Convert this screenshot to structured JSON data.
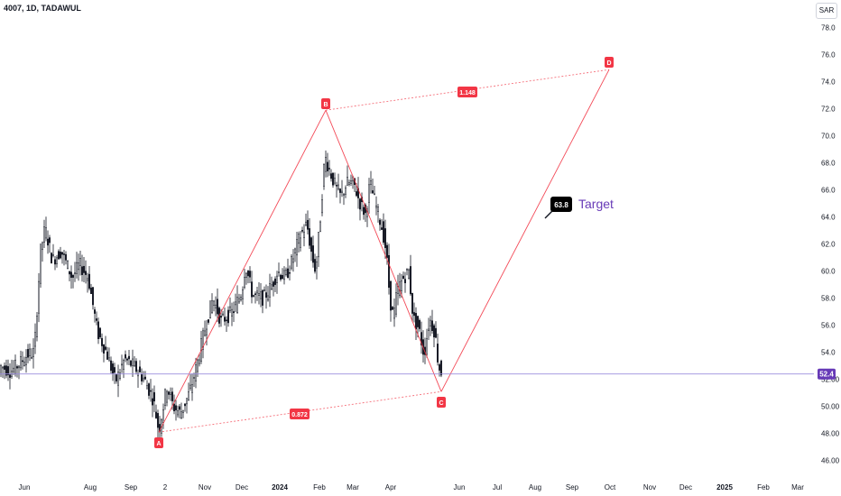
{
  "header": {
    "ticker": "4007, 1D, TADAWUL",
    "currency": "SAR"
  },
  "chart_data": {
    "type": "candlestick",
    "y_ticks": [
      "46.00",
      "48.00",
      "50.00",
      "52.00",
      "54.0",
      "56.0",
      "58.0",
      "60.0",
      "62.0",
      "64.0",
      "66.0",
      "68.0",
      "70.0",
      "72.0",
      "74.0",
      "76.0",
      "78.0"
    ],
    "x_ticks": [
      "Jun",
      "Aug",
      "Sep",
      "2",
      "Nov",
      "Dec",
      "2024",
      "Feb",
      "Mar",
      "Apr",
      "Jun",
      "Jul",
      "Aug",
      "Sep",
      "Oct",
      "Nov",
      "Dec",
      "2025",
      "Feb",
      "Mar"
    ],
    "bold_x_ticks": [
      "2024",
      "2025"
    ],
    "last_price": "52.4",
    "pattern": {
      "points": [
        {
          "label": "A",
          "price": 48.1
        },
        {
          "label": "B",
          "price": 71.9
        },
        {
          "label": "C",
          "price": 51.1
        },
        {
          "label": "D",
          "price": 74.9
        }
      ],
      "ratios": [
        {
          "label": "0.872",
          "between": [
            "A",
            "C"
          ]
        },
        {
          "label": "1.148",
          "between": [
            "B",
            "D"
          ]
        }
      ]
    },
    "callout": {
      "value": "63.8",
      "text": "Target"
    },
    "colors": {
      "pattern": "#f23645",
      "candles": "#131722",
      "price_line": "#9c8ede",
      "price_label": "#673ab7",
      "target_text": "#673ab7"
    }
  }
}
